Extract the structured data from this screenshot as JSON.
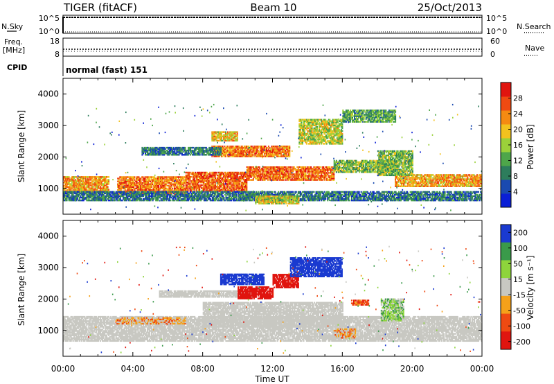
{
  "header": {
    "radar": "TIGER (fitACF)",
    "beam": "Beam 10",
    "date": "25/Oct/2013"
  },
  "panels": {
    "nsky": {
      "left_label": "N.Sky",
      "left_ticks": [
        "10^5",
        "10^0"
      ],
      "right_ticks": [
        "10^5",
        "10^0"
      ],
      "right_label": "N.Search"
    },
    "freq": {
      "left_label_1": "Freq.",
      "left_label_2": "[MHz]",
      "left_ticks": [
        "18",
        "8"
      ],
      "right_ticks": [
        "60",
        "0"
      ],
      "right_label": "Nave"
    },
    "cpid": {
      "label": "CPID",
      "mode": "normal (fast) 151"
    }
  },
  "colors": {
    "power": [
      "#0a1fd6",
      "#1a4ab0",
      "#2d7d5c",
      "#4ea64a",
      "#9bd13a",
      "#f2c21e",
      "#f58a12",
      "#ef4a12",
      "#e0150f"
    ],
    "velocity": [
      "#e0150f",
      "#ef4a12",
      "#f5a11a",
      "#c8c8c2",
      "#8ed43c",
      "#3a9a4a",
      "#1a3ad0"
    ],
    "ground_scatter": "#c8c8c2"
  },
  "chart_data": [
    {
      "type": "heatmap",
      "name": "power",
      "xlabel": "",
      "ylabel": "Slant Range [km]",
      "xlim": [
        0,
        24
      ],
      "ylim": [
        180,
        4500
      ],
      "x_ticks": [
        "00:00",
        "04:00",
        "08:00",
        "12:00",
        "16:00",
        "20:00",
        "00:00"
      ],
      "y_ticks": [
        1000,
        2000,
        3000,
        4000
      ],
      "colorbar": {
        "label": "Power [dB]",
        "ticks": [
          4,
          8,
          12,
          16,
          20,
          24,
          28
        ],
        "range": [
          0,
          32
        ]
      },
      "regions": [
        {
          "t0": 0.0,
          "t1": 2.6,
          "r0": 850,
          "r1": 1350,
          "v": 22
        },
        {
          "t0": 3.1,
          "t1": 7.0,
          "r0": 800,
          "r1": 1350,
          "v": 24
        },
        {
          "t0": 7.0,
          "t1": 10.5,
          "r0": 900,
          "r1": 1500,
          "v": 26
        },
        {
          "t0": 10.5,
          "t1": 15.5,
          "r0": 1250,
          "r1": 1700,
          "v": 25
        },
        {
          "t0": 15.5,
          "t1": 19.0,
          "r0": 1500,
          "r1": 1900,
          "v": 14
        },
        {
          "t0": 19.0,
          "t1": 24.0,
          "r0": 1050,
          "r1": 1450,
          "v": 22
        },
        {
          "t0": 0.0,
          "t1": 24.0,
          "r0": 600,
          "r1": 900,
          "v": 8
        },
        {
          "t0": 8.5,
          "t1": 13.0,
          "r0": 2000,
          "r1": 2350,
          "v": 24
        },
        {
          "t0": 8.5,
          "t1": 10.0,
          "r0": 2500,
          "r1": 2800,
          "v": 20
        },
        {
          "t0": 13.5,
          "t1": 16.0,
          "r0": 2400,
          "r1": 3200,
          "v": 17
        },
        {
          "t0": 16.0,
          "t1": 19.0,
          "r0": 3100,
          "r1": 3500,
          "v": 12
        },
        {
          "t0": 4.5,
          "t1": 9.0,
          "r0": 2050,
          "r1": 2300,
          "v": 8
        },
        {
          "t0": 11.0,
          "t1": 13.5,
          "r0": 500,
          "r1": 750,
          "v": 18
        },
        {
          "t0": 18.0,
          "t1": 20.0,
          "r0": 1400,
          "r1": 2200,
          "v": 14
        }
      ]
    },
    {
      "type": "heatmap",
      "name": "velocity",
      "xlabel": "Time UT",
      "ylabel": "Slant Range [km]",
      "xlim": [
        0,
        24
      ],
      "ylim": [
        180,
        4500
      ],
      "x_ticks": [
        "00:00",
        "04:00",
        "08:00",
        "12:00",
        "16:00",
        "20:00",
        "00:00"
      ],
      "y_ticks": [
        1000,
        2000,
        3000,
        4000
      ],
      "colorbar": {
        "label": "Velocity [m s⁻¹]",
        "ticks": [
          "200",
          "100",
          "50",
          "15",
          "-15",
          "-50",
          "-100",
          "-200"
        ]
      },
      "regions": [
        {
          "t0": 0.0,
          "t1": 24.0,
          "r0": 650,
          "r1": 1450,
          "v": 0
        },
        {
          "t0": 8.0,
          "t1": 16.0,
          "r0": 1100,
          "r1": 1900,
          "v": 0
        },
        {
          "t0": 5.5,
          "t1": 11.0,
          "r0": 2050,
          "r1": 2250,
          "v": 0
        },
        {
          "t0": 9.0,
          "t1": 11.5,
          "r0": 2450,
          "r1": 2800,
          "v": 180
        },
        {
          "t0": 10.0,
          "t1": 12.0,
          "r0": 2000,
          "r1": 2400,
          "v": -180
        },
        {
          "t0": 12.0,
          "t1": 13.5,
          "r0": 2350,
          "r1": 2800,
          "v": -150
        },
        {
          "t0": 13.0,
          "t1": 16.0,
          "r0": 2700,
          "r1": 3300,
          "v": 180
        },
        {
          "t0": 16.5,
          "t1": 17.5,
          "r0": 1800,
          "r1": 1950,
          "v": -70
        },
        {
          "t0": 18.2,
          "t1": 19.5,
          "r0": 1300,
          "r1": 2000,
          "v": 30
        },
        {
          "t0": 15.5,
          "t1": 16.7,
          "r0": 750,
          "r1": 1050,
          "v": -30
        },
        {
          "t0": 3.0,
          "t1": 7.0,
          "r0": 1200,
          "r1": 1400,
          "v": -25
        }
      ]
    }
  ]
}
